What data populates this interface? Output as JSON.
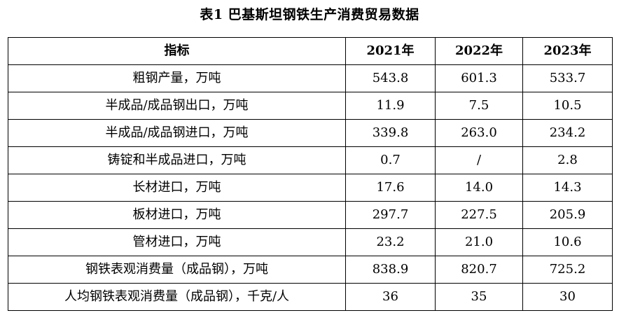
{
  "title": "表1  巴基斯坦钢铁生产消费贸易数据",
  "table": {
    "headers": [
      "指标",
      "2021年",
      "2022年",
      "2023年"
    ],
    "rows": [
      [
        "粗钢产量，万吨",
        "543.8",
        "601.3",
        "533.7"
      ],
      [
        "半成品/成品钢出口，万吨",
        "11.9",
        "7.5",
        "10.5"
      ],
      [
        "半成品/成品钢进口，万吨",
        "339.8",
        "263.0",
        "234.2"
      ],
      [
        "铸锭和半成品进口，万吨",
        "0.7",
        "/",
        "2.8"
      ],
      [
        "长材进口，万吨",
        "17.6",
        "14.0",
        "14.3"
      ],
      [
        "板材进口，万吨",
        "297.7",
        "227.5",
        "205.9"
      ],
      [
        "管材进口，万吨",
        "23.2",
        "21.0",
        "10.6"
      ],
      [
        "钢铁表观消费量（成品钢），万吨",
        "838.9",
        "820.7",
        "725.2"
      ],
      [
        "人均钢铁表观消费量（成品钢），千克/人",
        "36",
        "35",
        "30"
      ]
    ]
  }
}
